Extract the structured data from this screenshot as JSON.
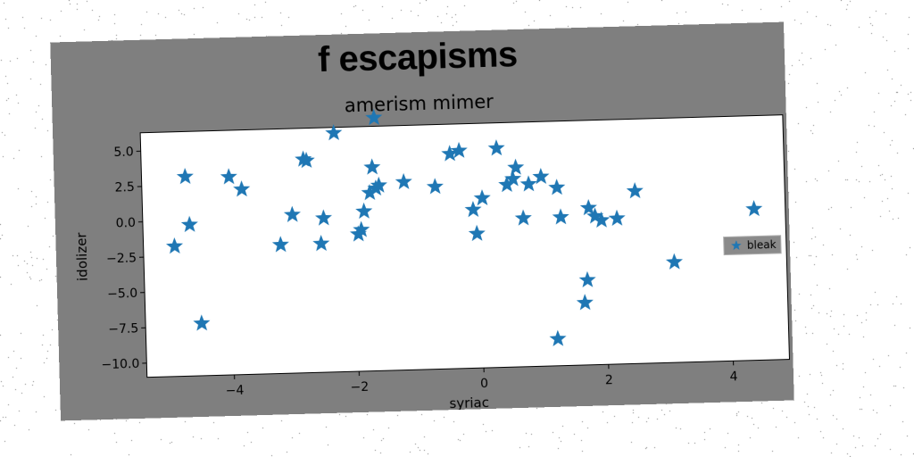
{
  "figure": {
    "suptitle": "f escapisms",
    "title": "amerism mimer"
  },
  "colors": {
    "figure_bg": "#7f7f7f",
    "plot_bg": "#ffffff",
    "marker": "#1f77b4"
  },
  "chart_data": {
    "type": "scatter",
    "title": "amerism mimer",
    "xlabel": "syriac",
    "ylabel": "idolizer",
    "xlim": [
      -5.4,
      4.9
    ],
    "ylim": [
      -11,
      6.3
    ],
    "xticks": [
      -4,
      -2,
      0,
      2,
      4
    ],
    "xtick_labels": [
      "−4",
      "−2",
      "0",
      "2",
      "4"
    ],
    "yticks": [
      -10,
      -7.5,
      -5,
      -2.5,
      0,
      2.5,
      5
    ],
    "ytick_labels": [
      "−10.0",
      "−7.5",
      "−5.0",
      "−2.5",
      "0.0",
      "2.5",
      "5.0"
    ],
    "grid": false,
    "legend_position": "center-right",
    "marker": "star",
    "series": [
      {
        "name": "bleak",
        "points": [
          [
            -4.9,
            -1.8
          ],
          [
            -4.7,
            3.1
          ],
          [
            -4.65,
            -0.3
          ],
          [
            -4.5,
            -7.3
          ],
          [
            -4.0,
            3.0
          ],
          [
            -3.8,
            2.1
          ],
          [
            -3.2,
            -1.9
          ],
          [
            -3.0,
            0.2
          ],
          [
            -2.8,
            4.1
          ],
          [
            -2.75,
            4.0
          ],
          [
            -2.55,
            -1.9
          ],
          [
            -2.5,
            -0.1
          ],
          [
            -2.3,
            5.9
          ],
          [
            -1.95,
            -1.3
          ],
          [
            -1.9,
            -1.0
          ],
          [
            -1.85,
            0.3
          ],
          [
            -1.75,
            1.6
          ],
          [
            -1.7,
            3.4
          ],
          [
            -1.65,
            6.9
          ],
          [
            -1.65,
            1.9
          ],
          [
            -1.6,
            2.1
          ],
          [
            -1.2,
            2.3
          ],
          [
            -0.7,
            1.9
          ],
          [
            -0.45,
            4.2
          ],
          [
            -0.3,
            4.4
          ],
          [
            -0.1,
            0.2
          ],
          [
            -0.05,
            -1.5
          ],
          [
            0.05,
            1.0
          ],
          [
            0.3,
            4.5
          ],
          [
            0.45,
            1.9
          ],
          [
            0.55,
            2.3
          ],
          [
            0.6,
            3.1
          ],
          [
            0.7,
            -0.5
          ],
          [
            0.8,
            1.9
          ],
          [
            1.0,
            2.4
          ],
          [
            1.2,
            -9.1
          ],
          [
            1.25,
            1.6
          ],
          [
            1.3,
            -0.5
          ],
          [
            1.65,
            -6.6
          ],
          [
            1.7,
            -5.0
          ],
          [
            1.75,
            0.1
          ],
          [
            1.85,
            -0.5
          ],
          [
            1.95,
            -0.8
          ],
          [
            2.2,
            -0.7
          ],
          [
            2.5,
            1.2
          ],
          [
            3.1,
            -3.9
          ],
          [
            4.4,
            -0.3
          ]
        ]
      }
    ]
  }
}
